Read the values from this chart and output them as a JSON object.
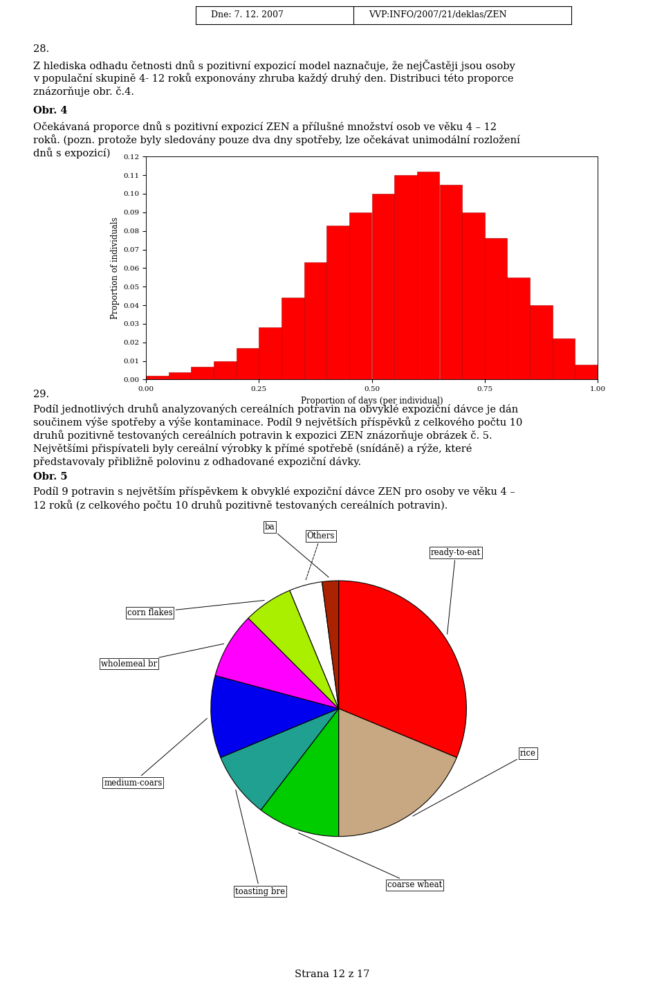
{
  "page_header_left": "Dne: 7. 12. 2007",
  "page_header_right": "VVP:INFO/2007/21/deklas/ZEN",
  "t0": "28.",
  "t1_line1": "Z hlediska odhadu četnosti dnů s pozitivní expozicí model naznačuje, že nejČastěji jsou osoby",
  "t1_line2": "v populační skupině 4- 12 roků exponovány zhruba každý druhý den. Distribuci této proporce",
  "t1_line3": "znázorňuje obr. č.4.",
  "t2": "Obr. 4",
  "t3_line1": "Očekávaná proporce dnů s pozitivní expozicí ZEN a přílušné množství osob ve věku 4 – 12",
  "t3_line2": "roků. (pozn. protože byly sledovány pouze dva dny spotřeby, lze očekávat unimodální rozložení",
  "t3_line3": "dnů s expozicí)",
  "t4": "29.",
  "t5_line1": "Podíl jednotlivých druhů analyzovaných cereálních potravin na obvyklé expoziční dávce je dán",
  "t5_line2": "součinem výše spotřeby a výše kontaminace. Podíl 9 největších příspěvků z celkového počtu 10",
  "t5_line3": "druhů pozitivně testovaných cereálních potravin k expozici ZEN znázorňuje obrázek č. 5.",
  "t5_line4": "Největšími přispívateli byly cereální výrobky k přímé spotřebě (snídáně) a rýže, které",
  "t5_line5": "představovaly přibližně polovinu z odhadované expoziční dávky.",
  "t6": "Obr. 5",
  "t7_line1": "Podíl 9 potravin s největším příspěvkem k obvyklé expoziční dávce ZEN pro osoby ve věku 4 –",
  "t7_line2": "12 roků (z celkového počtu 10 druhů pozitivně testovaných cereálních potravin).",
  "t8": "Strana 12 z 17",
  "hist_bar_values": [
    0.002,
    0.004,
    0.007,
    0.01,
    0.017,
    0.028,
    0.044,
    0.063,
    0.083,
    0.09,
    0.1,
    0.11,
    0.112,
    0.105,
    0.09,
    0.076,
    0.055,
    0.04,
    0.022,
    0.008
  ],
  "hist_bar_color": "#FF0000",
  "hist_bar_edge": "#AA0000",
  "hist_xlim": [
    0,
    1.0
  ],
  "hist_ylim": [
    0,
    0.12
  ],
  "hist_xlabel": "Proportion of days (per individual)",
  "hist_ylabel": "Proportion of individuals",
  "hist_yticks": [
    0.0,
    0.01,
    0.02,
    0.03,
    0.04,
    0.05,
    0.06,
    0.07,
    0.08,
    0.09,
    0.1,
    0.11,
    0.12
  ],
  "hist_xticks": [
    0,
    0.25,
    0.5,
    0.75,
    1
  ],
  "pie_labels": [
    "ready-to-eat",
    "rice",
    "coarse wheat",
    "toasting bre",
    "medium-coars",
    "wholemeal br",
    "corn flakes",
    "Others",
    "ba"
  ],
  "pie_sizes": [
    30,
    18,
    10,
    8,
    10,
    8,
    6,
    4,
    2
  ],
  "pie_colors": [
    "#FF0000",
    "#C8A882",
    "#00CC00",
    "#20A090",
    "#0000EE",
    "#FF00FF",
    "#AAEE00",
    "#FFFFFF",
    "#AA2200"
  ],
  "pie_edge_color": "#000000",
  "background_color": "#FFFFFF",
  "text_color": "#000000",
  "font_size_body": 10.5,
  "font_size_header": 9,
  "font_size_label": 8.5
}
